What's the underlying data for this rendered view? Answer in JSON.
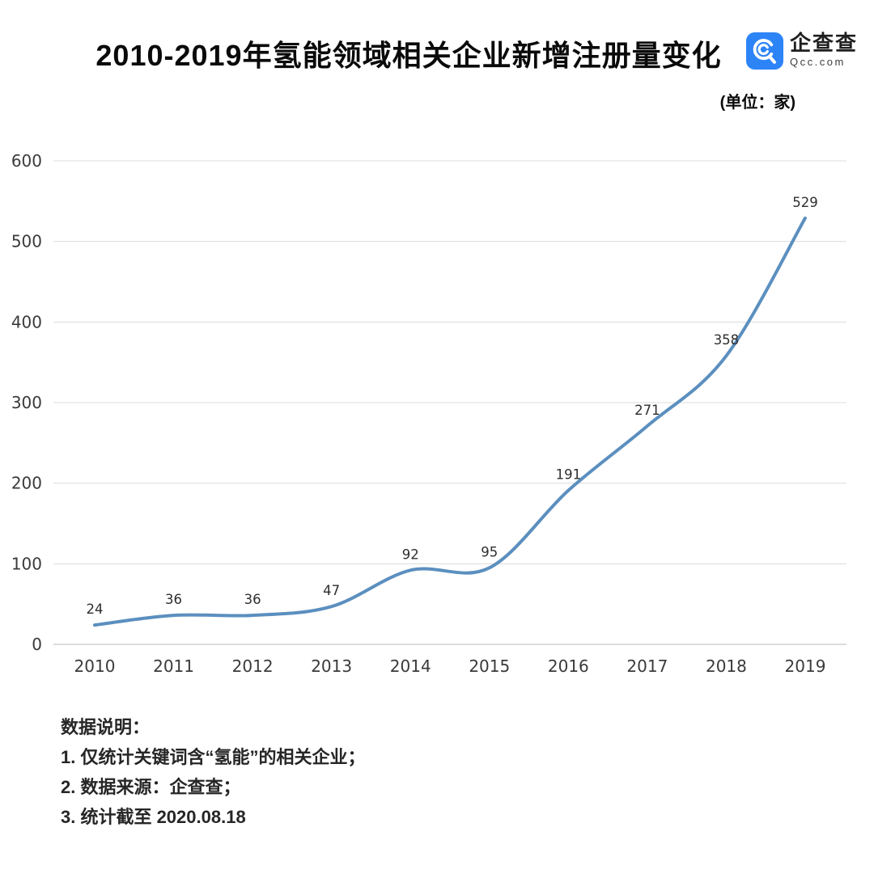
{
  "header": {
    "title": "2010-2019年氢能领域相关企业新增注册量变化",
    "unit_label": "(单位：家)",
    "logo": {
      "name": "企查查",
      "domain": "Qcc.com",
      "icon": "qcc-magnifier-icon",
      "brand_color": "#2d84f7"
    }
  },
  "chart_data": {
    "type": "line",
    "title": "2010-2019年氢能领域相关企业新增注册量变化",
    "unit": "家",
    "categories": [
      "2010",
      "2011",
      "2012",
      "2013",
      "2014",
      "2015",
      "2016",
      "2017",
      "2018",
      "2019"
    ],
    "values": [
      24,
      36,
      36,
      47,
      92,
      95,
      191,
      271,
      358,
      529
    ],
    "xlabel": "",
    "ylabel": "",
    "ylim": [
      0,
      600
    ],
    "ytick_step": 100,
    "yticks": [
      0,
      100,
      200,
      300,
      400,
      500,
      600
    ],
    "grid": true,
    "legend": "none",
    "line_color": "#5b8fbf",
    "grid_color": "#dcdcdc",
    "zero_line_color": "#cfcfcf",
    "tick_color": "#3a3a3a",
    "data_label_color": "#2e2e2e"
  },
  "footer": {
    "heading": "数据说明：",
    "items": [
      "1. 仅统计关键词含“氢能”的相关企业；",
      "2. 数据来源：企查查；",
      "3. 统计截至 2020.08.18"
    ]
  }
}
